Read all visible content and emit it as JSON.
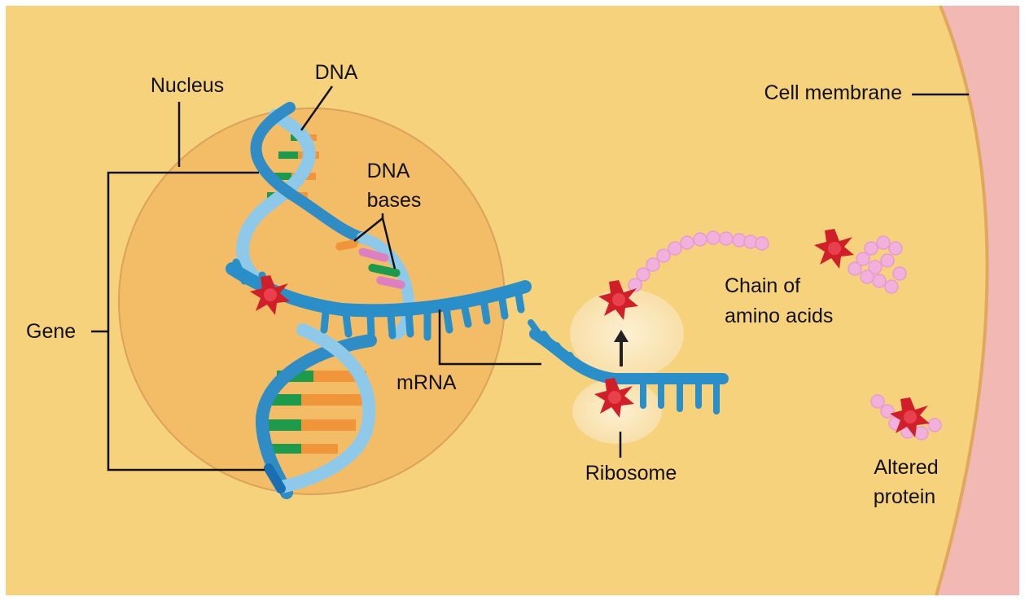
{
  "labels": {
    "nucleus": "Nucleus",
    "dna": "DNA",
    "dna_bases_line1": "DNA",
    "dna_bases_line2": "bases",
    "gene": "Gene",
    "mrna": "mRNA",
    "ribosome": "Ribosome",
    "chain_line1": "Chain of",
    "chain_line2": "amino acids",
    "altered_line1": "Altered",
    "altered_line2": "protein",
    "cell_membrane": "Cell membrane"
  },
  "colors": {
    "cytoplasm": "#f7d27c",
    "nucleus_fill": "#f3bd68",
    "nucleus_edge": "#d9a35a",
    "membrane": "#f2b8b3",
    "dna_light": "#8fc9ea",
    "dna_dark": "#2f8cc5",
    "mrna": "#2a8fc9",
    "base_green": "#1e9a4c",
    "base_orange": "#f0953a",
    "base_pink": "#dd7fc0",
    "ribosome": "#fbe7bf",
    "amino_acid": "#f2b1dc",
    "mutation_star": "#d11f2a"
  }
}
